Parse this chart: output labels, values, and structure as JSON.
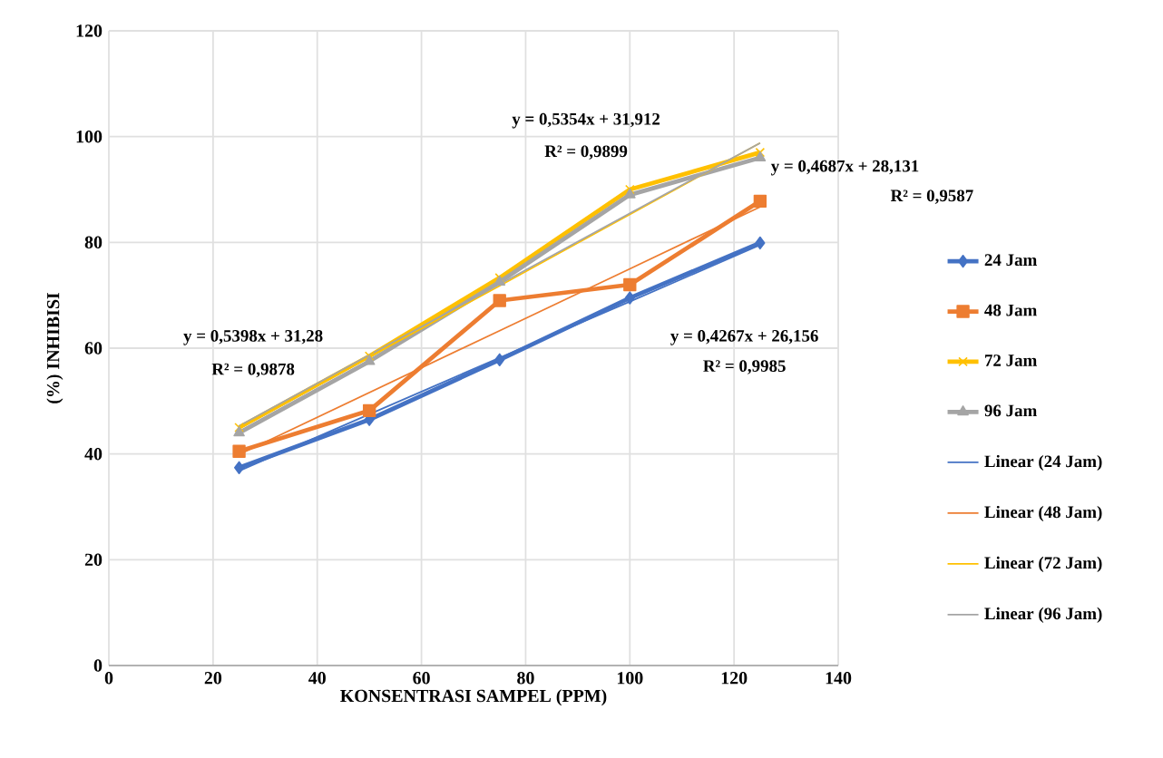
{
  "chart_data": {
    "type": "line",
    "xlabel": "KONSENTRASI SAMPEL (PPM)",
    "ylabel": "(%) INHIBISI",
    "x": [
      25,
      50,
      75,
      100,
      125
    ],
    "series": [
      {
        "name": "24 Jam",
        "color": "#4472c4",
        "values": [
          37.4,
          46.5,
          57.8,
          69.5,
          79.9
        ],
        "marker": "diamond"
      },
      {
        "name": "48 Jam",
        "color": "#ed7d31",
        "values": [
          40.5,
          48.2,
          69,
          72,
          87.8
        ],
        "marker": "square"
      },
      {
        "name": "72 Jam",
        "color": "#ffc000",
        "values": [
          45,
          58.5,
          73.3,
          90,
          97
        ],
        "marker": "cross"
      },
      {
        "name": "96 Jam",
        "color": "#a5a5a5",
        "values": [
          44,
          57.5,
          72.5,
          89,
          96
        ],
        "marker": "triangle"
      },
      {
        "name": "Linear (24 Jam)",
        "color": "#4472c4",
        "values": [
          36.8,
          47.5,
          58.2,
          68.8,
          79.5
        ],
        "marker": "none"
      },
      {
        "name": "Linear (48 Jam)",
        "color": "#ed7d31",
        "values": [
          39.9,
          51.6,
          63.3,
          75,
          86.7
        ],
        "marker": "none"
      },
      {
        "name": "Linear (72 Jam)",
        "color": "#ffc000",
        "values": [
          44.8,
          58.3,
          71.8,
          85.3,
          98.8
        ],
        "marker": "none"
      },
      {
        "name": "Linear (96 Jam)",
        "color": "#a5a5a5",
        "values": [
          45.3,
          58.7,
          72.1,
          85.5,
          98.8
        ],
        "marker": "none"
      }
    ],
    "annotations": [
      "y = 0,5398x + 31,28",
      "R² = 0,9878",
      "y = 0,5354x + 31,912",
      "R² = 0,9899",
      "y = 0,4687x + 28,131",
      "R² = 0,9587",
      "y = 0,4267x + 26,156",
      "R² = 0,9985"
    ],
    "xlim": [
      0,
      140
    ],
    "xticks": [
      0,
      20,
      40,
      60,
      80,
      100,
      120,
      140
    ],
    "ylim": [
      0,
      120
    ],
    "yticks": [
      0,
      20,
      40,
      60,
      80,
      100,
      120
    ],
    "grid": true,
    "legend": "right",
    "line_style": "solid"
  }
}
